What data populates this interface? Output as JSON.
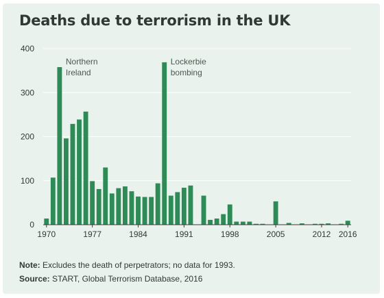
{
  "title": "Deaths due to terrorism in the UK",
  "footer": {
    "note_label": "Note:",
    "note_text": " Excludes the death of perpetrators; no data for 1993.",
    "source_label": "Source:",
    "source_text": " START, Global Terrorism Database, 2016"
  },
  "colors": {
    "bar": "#2e8b57",
    "background": "#e9f2ec",
    "grid": "#ffffff",
    "text": "#2f3a34"
  },
  "chart_data": {
    "type": "bar",
    "title": "Deaths due to terrorism in the UK",
    "xlabel": "",
    "ylabel": "",
    "ylim": [
      0,
      400
    ],
    "yticks": [
      0,
      100,
      200,
      300,
      400
    ],
    "xtick_labels": [
      "1970",
      "1977",
      "1984",
      "1991",
      "1998",
      "2005",
      "2012",
      "2016"
    ],
    "grid": true,
    "categories": [
      1970,
      1971,
      1972,
      1973,
      1974,
      1975,
      1976,
      1977,
      1978,
      1979,
      1980,
      1981,
      1982,
      1983,
      1984,
      1985,
      1986,
      1987,
      1988,
      1989,
      1990,
      1991,
      1992,
      1993,
      1994,
      1995,
      1996,
      1997,
      1998,
      1999,
      2000,
      2001,
      2002,
      2003,
      2004,
      2005,
      2006,
      2007,
      2008,
      2009,
      2010,
      2011,
      2012,
      2013,
      2014,
      2015,
      2016
    ],
    "values": [
      14,
      107,
      358,
      196,
      229,
      239,
      257,
      99,
      81,
      130,
      71,
      83,
      87,
      76,
      64,
      63,
      63,
      94,
      369,
      66,
      74,
      84,
      89,
      null,
      66,
      11,
      14,
      24,
      46,
      7,
      7,
      7,
      2,
      2,
      0,
      53,
      0,
      4,
      0,
      3,
      0,
      2,
      2,
      3,
      0,
      2,
      9
    ],
    "annotations": [
      {
        "text_lines": [
          "Northern",
          "Ireland"
        ],
        "x": 1972
      },
      {
        "text_lines": [
          "Lockerbie",
          "bombing"
        ],
        "x": 1988
      }
    ]
  }
}
